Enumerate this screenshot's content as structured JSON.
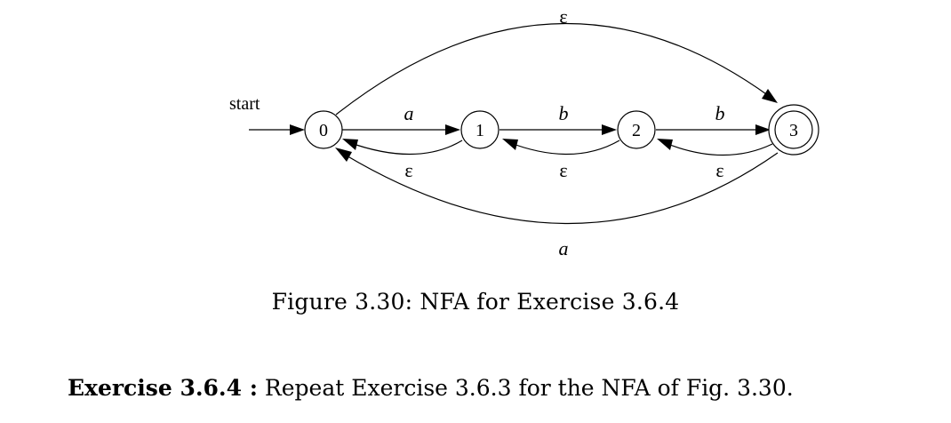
{
  "diagram": {
    "start_label": "start",
    "states": {
      "s0": "0",
      "s1": "1",
      "s2": "2",
      "s3": "3"
    },
    "accepting_state": "3",
    "edges": {
      "e_0_1": "a",
      "e_1_2": "b",
      "e_2_3": "b",
      "e_1_0": "ε",
      "e_2_1": "ε",
      "e_3_2": "ε",
      "e_0_3": "ε",
      "e_3_0": "a"
    }
  },
  "caption": "Figure 3.30: NFA for Exercise 3.6.4",
  "exercise": {
    "title": "Exercise 3.6.4 :",
    "text": " Repeat Exercise 3.6.3 for the NFA of Fig. 3.30."
  }
}
